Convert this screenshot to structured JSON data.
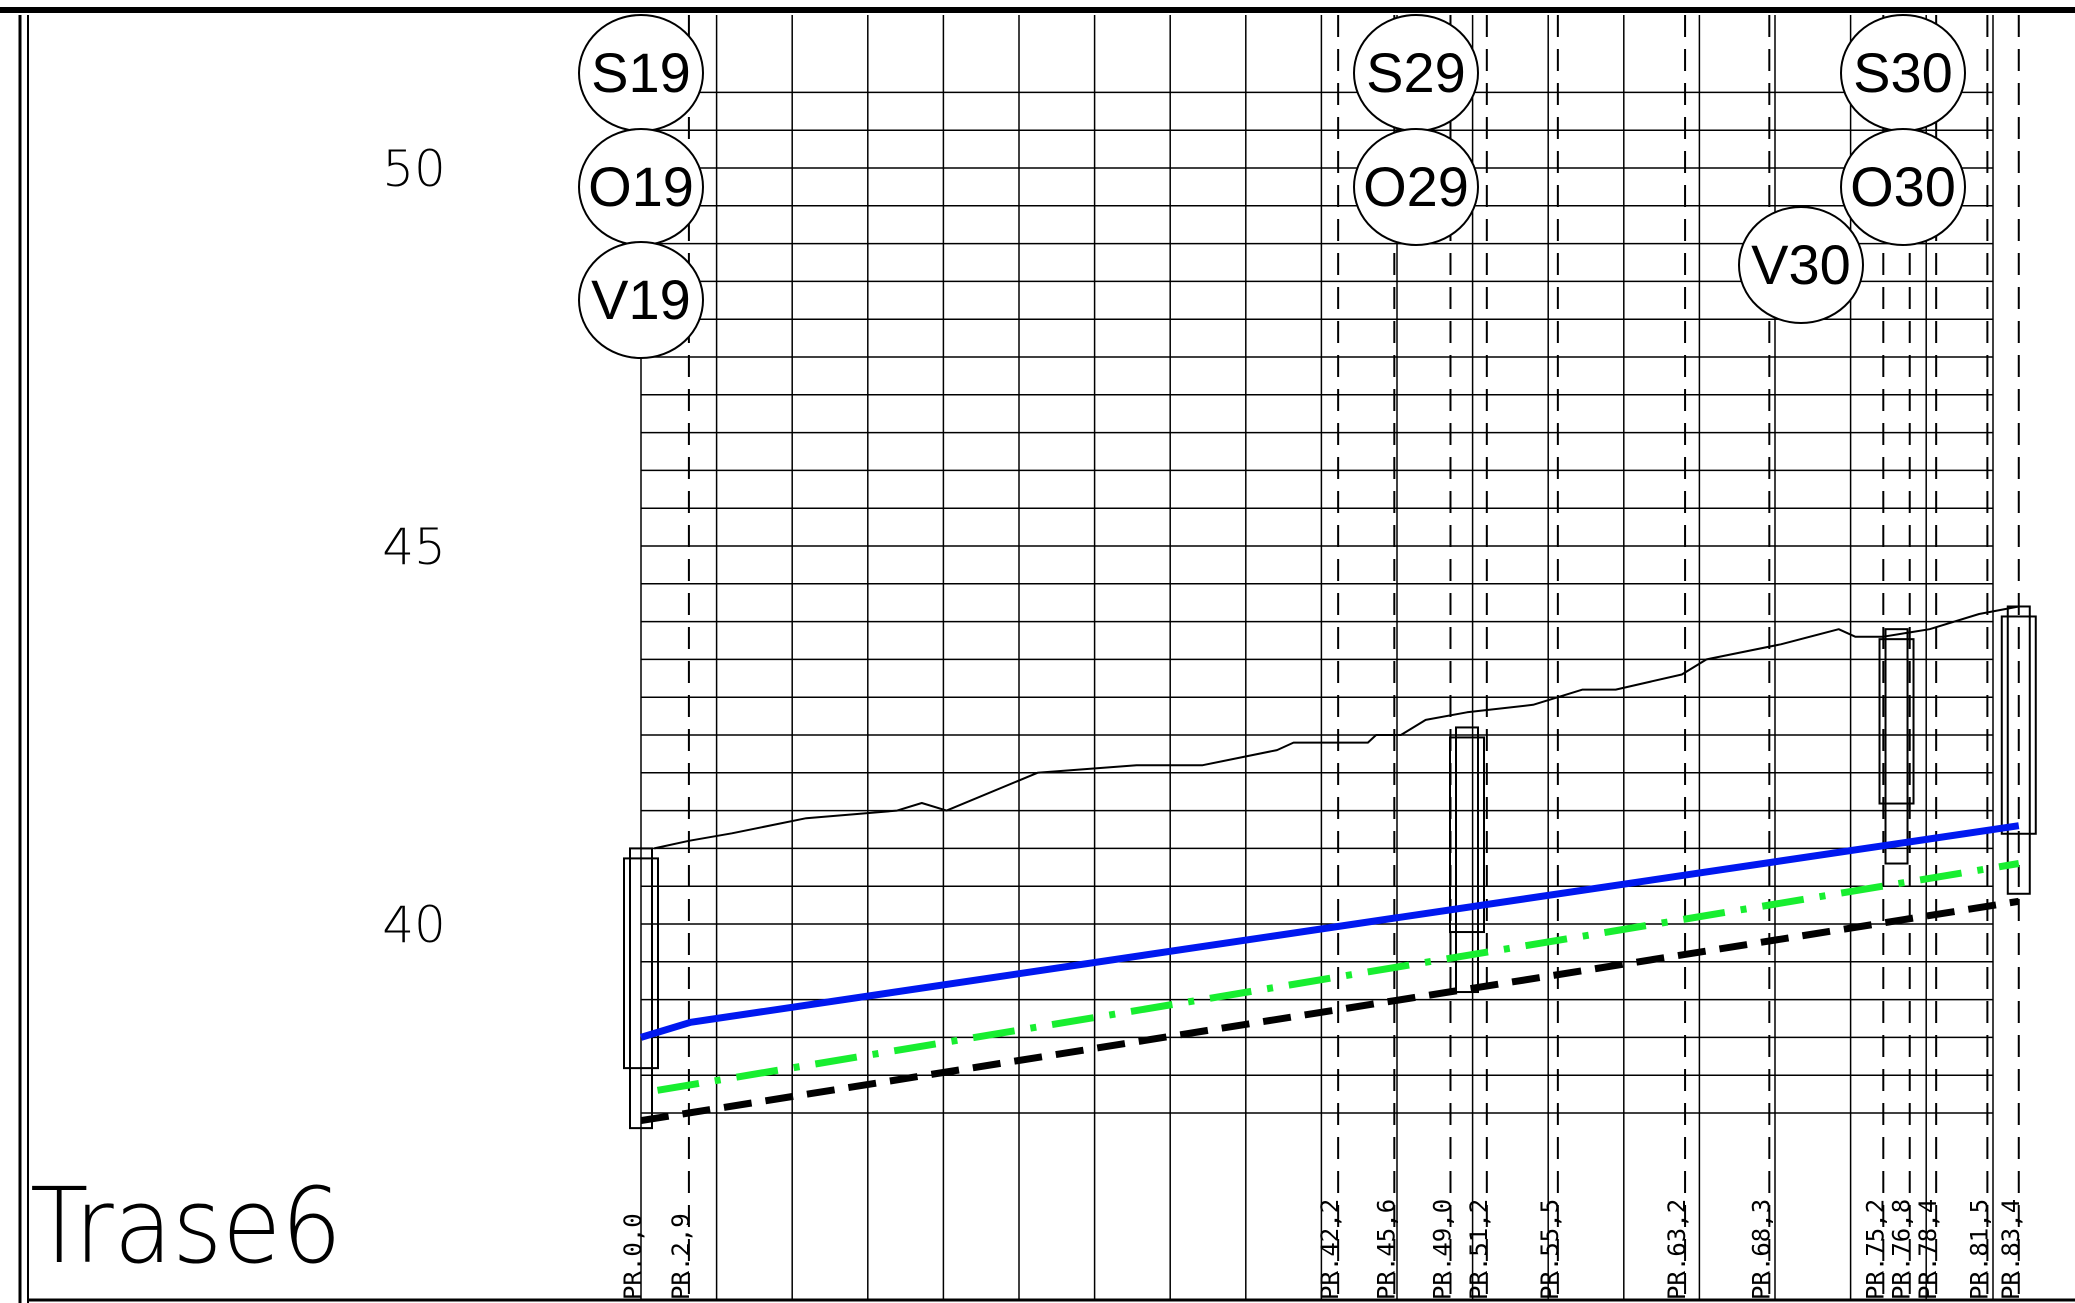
{
  "title": "Trase6",
  "elevation_labels": [
    "50",
    "45",
    "40"
  ],
  "nodes": [
    {
      "labels": [
        "S19",
        "O19",
        "V19"
      ]
    },
    {
      "labels": [
        "S29",
        "O29"
      ]
    },
    {
      "labels": [
        "V30"
      ]
    },
    {
      "labels": [
        "S30",
        "O30"
      ]
    }
  ],
  "stations": [
    {
      "label": "PR.0,0",
      "chainage": 0.0
    },
    {
      "label": "PR.2,9",
      "chainage": 2.9
    },
    {
      "label": "PR.42,2",
      "chainage": 42.2
    },
    {
      "label": "PR.45,6",
      "chainage": 45.6
    },
    {
      "label": "PR.49,0",
      "chainage": 49.0
    },
    {
      "label": "PR.51,2",
      "chainage": 51.2
    },
    {
      "label": "PR.55,5",
      "chainage": 55.5
    },
    {
      "label": "PR.63,2",
      "chainage": 63.2
    },
    {
      "label": "PR.68,3",
      "chainage": 68.3
    },
    {
      "label": "PR.75,2",
      "chainage": 75.2
    },
    {
      "label": "PR.76,8",
      "chainage": 76.8
    },
    {
      "label": "PR.78,4",
      "chainage": 78.4
    },
    {
      "label": "PR.81,5",
      "chainage": 81.5
    },
    {
      "label": "PR.83,4",
      "chainage": 83.4
    }
  ],
  "colors": {
    "pipe_top": "#0018f0",
    "water_level": "#18ee30",
    "pipe_invert": "#000000",
    "grid": "#000000"
  },
  "chart_data": {
    "type": "line",
    "title": "Trase6",
    "xlabel": "",
    "ylabel": "",
    "xlim": [
      0,
      90
    ],
    "ylim": [
      35,
      52
    ],
    "y_ticks": [
      40,
      45,
      50
    ],
    "grid": true,
    "series": [
      {
        "key": "ground",
        "line_style": "thin-solid",
        "points": [
          [
            0.8,
            41.0
          ],
          [
            2.9,
            41.1
          ],
          [
            5.5,
            41.2
          ],
          [
            10.0,
            41.4
          ],
          [
            15.5,
            41.5
          ],
          [
            17.0,
            41.6
          ],
          [
            18.5,
            41.5
          ],
          [
            24.0,
            42.0
          ],
          [
            30.0,
            42.1
          ],
          [
            34.0,
            42.1
          ],
          [
            38.5,
            42.3
          ],
          [
            39.5,
            42.4
          ],
          [
            42.5,
            42.4
          ],
          [
            44.0,
            42.4
          ],
          [
            44.5,
            42.5
          ],
          [
            46.0,
            42.5
          ],
          [
            47.5,
            42.7
          ],
          [
            50.0,
            42.8
          ],
          [
            54.0,
            42.9
          ],
          [
            57.0,
            43.1
          ],
          [
            59.0,
            43.1
          ],
          [
            63.0,
            43.3
          ],
          [
            64.5,
            43.5
          ],
          [
            69.0,
            43.7
          ],
          [
            72.5,
            43.9
          ],
          [
            73.5,
            43.8
          ],
          [
            75.2,
            43.8
          ],
          [
            78.0,
            43.9
          ],
          [
            81.0,
            44.1
          ],
          [
            83.4,
            44.2
          ]
        ]
      },
      {
        "key": "pipe_top",
        "line_style": "solid",
        "color": "#0018f0",
        "points": [
          [
            0.0,
            38.5
          ],
          [
            3.0,
            38.7
          ],
          [
            83.4,
            41.3
          ]
        ]
      },
      {
        "key": "water_level",
        "line_style": "dash-dot",
        "color": "#18ee30",
        "points": [
          [
            1.0,
            37.8
          ],
          [
            83.4,
            40.8
          ]
        ]
      },
      {
        "key": "pipe_invert",
        "line_style": "dashed",
        "color": "#000000",
        "points": [
          [
            0.0,
            37.4
          ],
          [
            83.4,
            40.3
          ]
        ]
      }
    ],
    "structures": [
      {
        "chainage": 0.0,
        "bottom": 37.3,
        "top": 41.0
      },
      {
        "chainage": 50.0,
        "bottom": 39.1,
        "top": 42.6
      },
      {
        "chainage": 76.0,
        "bottom": 40.8,
        "top": 43.9
      },
      {
        "chainage": 83.4,
        "bottom": 40.4,
        "top": 44.2
      }
    ]
  }
}
